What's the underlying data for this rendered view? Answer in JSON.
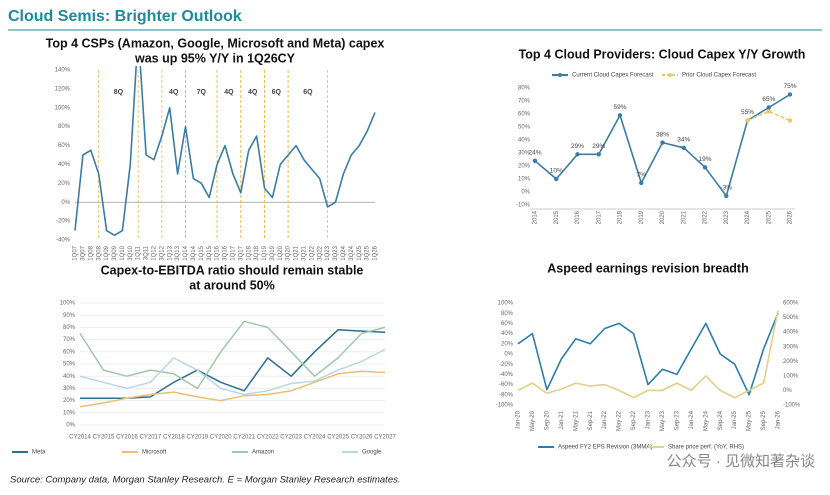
{
  "title": "Cloud Semis: Brighter Outlook",
  "source": "Source: Company data, Morgan Stanley Research. E = Morgan Stanley Research estimates.",
  "watermark": "公众号 · 见微知著杂谈",
  "chart_data": [
    {
      "type": "line",
      "title": [
        "Top 4 CSPs (Amazon, Google, Microsoft and Meta) capex",
        "was up 95% Y/Y in 1Q26CY"
      ],
      "categories": [
        "1Q07",
        "3Q07",
        "1Q08",
        "3Q08",
        "1Q09",
        "3Q09",
        "1Q10",
        "3Q10",
        "1Q11",
        "3Q11",
        "1Q12",
        "3Q12",
        "1Q13",
        "3Q13",
        "1Q14",
        "3Q14",
        "1Q15",
        "3Q15",
        "1Q16",
        "3Q16",
        "1Q17",
        "3Q17",
        "1Q18",
        "3Q18",
        "1Q19",
        "3Q19",
        "1Q20",
        "3Q20",
        "1Q21",
        "3Q21",
        "1Q22",
        "3Q22",
        "1Q23",
        "3Q23",
        "1Q24",
        "3Q24",
        "1Q25",
        "3Q25",
        "1Q26"
      ],
      "values": [
        -30,
        50,
        55,
        30,
        -30,
        -35,
        -30,
        40,
        180,
        50,
        45,
        70,
        100,
        30,
        80,
        25,
        20,
        5,
        40,
        60,
        30,
        10,
        55,
        70,
        15,
        5,
        40,
        50,
        60,
        45,
        35,
        25,
        -5,
        0,
        30,
        50,
        60,
        75,
        95
      ],
      "color": "#3a7ca5",
      "annotations": [
        "8Q",
        "4Q",
        "7Q",
        "4Q",
        "4Q",
        "6Q",
        "6Q"
      ],
      "annotation_color": "#e8b84a",
      "ylim": [
        -40,
        140
      ],
      "yticks": [
        {
          "value": -40,
          "label": "-40%"
        },
        {
          "value": -20,
          "label": "-20%"
        },
        {
          "value": 0,
          "label": "0%"
        },
        {
          "value": 20,
          "label": "20%"
        },
        {
          "value": 40,
          "label": "40%"
        },
        {
          "value": 60,
          "label": "60%"
        },
        {
          "value": 80,
          "label": "80%"
        },
        {
          "value": 100,
          "label": "100%"
        },
        {
          "value": 120,
          "label": "120%"
        },
        {
          "value": 140,
          "label": "140%"
        }
      ],
      "grid": false
    },
    {
      "type": "line",
      "title": [
        "Top 4 Cloud Providers: Cloud Capex Y/Y Growth"
      ],
      "categories": [
        "2014",
        "2015",
        "2016",
        "2017",
        "2018",
        "2019",
        "2020",
        "2021",
        "2022",
        "2023",
        "2024",
        "2025",
        "2026"
      ],
      "series": [
        {
          "name": "Current Cloud Capex Forecast",
          "color": "#3a7ca5",
          "line_style": "solid",
          "values": [
            24,
            10,
            29,
            29,
            59,
            7,
            38,
            34,
            19,
            -3,
            55,
            65,
            75
          ],
          "value_labels": [
            "24%",
            "10%",
            "29%",
            "29%",
            "59%",
            "7%",
            "38%",
            "34%",
            "19%",
            "-3%",
            "55%",
            "65%",
            "75%"
          ]
        },
        {
          "name": "Prior Cloud Capex Forecast",
          "color": "#e8c86a",
          "line_style": "dashed",
          "values": [
            null,
            null,
            null,
            null,
            null,
            null,
            null,
            null,
            null,
            null,
            55,
            62,
            55
          ]
        }
      ],
      "markers": true,
      "legend": "top",
      "ylim": [
        -10,
        80
      ],
      "yticks": [
        {
          "value": -10,
          "label": "-10%"
        },
        {
          "value": 0,
          "label": "0%"
        },
        {
          "value": 10,
          "label": "10%"
        },
        {
          "value": 20,
          "label": "20%"
        },
        {
          "value": 30,
          "label": "30%"
        },
        {
          "value": 40,
          "label": "40%"
        },
        {
          "value": 50,
          "label": "50%"
        },
        {
          "value": 60,
          "label": "60%"
        },
        {
          "value": 70,
          "label": "70%"
        },
        {
          "value": 80,
          "label": "80%"
        }
      ],
      "grid": false
    },
    {
      "type": "line",
      "title": [
        "Capex-to-EBITDA ratio should remain stable",
        "at around 50%"
      ],
      "categories": [
        "CY2014",
        "CY2015",
        "CY2016",
        "CY2017",
        "CY2018",
        "CY2019",
        "CY2020",
        "CY2021",
        "CY2022",
        "CY2023",
        "CY2024",
        "CY2025",
        "CY2026",
        "CY2027"
      ],
      "series": [
        {
          "name": "Meta",
          "color": "#2e6e8e",
          "line_style": "solid",
          "values": [
            22,
            22,
            22,
            23,
            35,
            45,
            35,
            28,
            55,
            40,
            60,
            78,
            77,
            76
          ]
        },
        {
          "name": "Microsoft",
          "color": "#e8c070",
          "line_style": "solid",
          "values": [
            15,
            18,
            22,
            25,
            27,
            23,
            20,
            24,
            25,
            28,
            35,
            42,
            44,
            43
          ]
        },
        {
          "name": "Amazon",
          "color": "#9dc8a8",
          "line_style": "solid",
          "values": [
            75,
            45,
            40,
            45,
            42,
            30,
            60,
            85,
            80,
            60,
            40,
            55,
            75,
            80
          ]
        },
        {
          "name": "Google",
          "color": "#b8d8e0",
          "line_style": "solid",
          "values": [
            40,
            35,
            30,
            35,
            55,
            45,
            30,
            25,
            28,
            34,
            36,
            45,
            52,
            62
          ]
        }
      ],
      "legend": "bottom",
      "ylim": [
        0,
        100
      ],
      "yticks": [
        {
          "value": 0,
          "label": "0%"
        },
        {
          "value": 10,
          "label": "10%"
        },
        {
          "value": 20,
          "label": "20%"
        },
        {
          "value": 30,
          "label": "30%"
        },
        {
          "value": 40,
          "label": "40%"
        },
        {
          "value": 50,
          "label": "50%"
        },
        {
          "value": 60,
          "label": "60%"
        },
        {
          "value": 70,
          "label": "70%"
        },
        {
          "value": 80,
          "label": "80%"
        },
        {
          "value": 90,
          "label": "90%"
        },
        {
          "value": 100,
          "label": "100%"
        }
      ],
      "grid": true
    },
    {
      "type": "line",
      "title": [
        "Aspeed earnings revision breadth"
      ],
      "categories": [
        "Jan-20",
        "May-20",
        "Sep-20",
        "Jan-21",
        "May-21",
        "Sep-21",
        "Jan-22",
        "May-22",
        "Sep-22",
        "Jan-23",
        "May-23",
        "Sep-23",
        "Jan-24",
        "May-24",
        "Sep-24",
        "Jan-25",
        "May-25",
        "Sep-25",
        "Jan-26"
      ],
      "series": [
        {
          "name": "Aspeed FY2 EPS Revision (3MMA)",
          "color": "#2a7fa8",
          "line_style": "solid",
          "values": [
            20,
            40,
            -70,
            -10,
            30,
            20,
            50,
            60,
            40,
            -60,
            -30,
            -40,
            10,
            60,
            0,
            -20,
            -80,
            10,
            80
          ]
        },
        {
          "name": "Share price perf. (YoY, RHS)",
          "color": "#e2cf8a",
          "line_style": "solid",
          "axis": "y2",
          "values": [
            0,
            50,
            -20,
            10,
            50,
            30,
            40,
            0,
            -50,
            0,
            0,
            50,
            0,
            100,
            0,
            -50,
            0,
            50,
            550
          ]
        }
      ],
      "legend": "bottom",
      "ylim": [
        -100,
        100
      ],
      "yticks": [
        {
          "value": -100,
          "label": "-100%"
        },
        {
          "value": -80,
          "label": "-80%"
        },
        {
          "value": -60,
          "label": "-60%"
        },
        {
          "value": -40,
          "label": "-40%"
        },
        {
          "value": -20,
          "label": "-20%"
        },
        {
          "value": 0,
          "label": "0%"
        },
        {
          "value": 20,
          "label": "20%"
        },
        {
          "value": 40,
          "label": "40%"
        },
        {
          "value": 60,
          "label": "60%"
        },
        {
          "value": 80,
          "label": "80%"
        },
        {
          "value": 100,
          "label": "100%"
        }
      ],
      "y2lim": [
        -100,
        600
      ],
      "y2ticks": [
        {
          "value": -100,
          "label": "-100%"
        },
        {
          "value": 0,
          "label": "0%"
        },
        {
          "value": 100,
          "label": "100%"
        },
        {
          "value": 200,
          "label": "200%"
        },
        {
          "value": 300,
          "label": "300%"
        },
        {
          "value": 400,
          "label": "400%"
        },
        {
          "value": 500,
          "label": "500%"
        },
        {
          "value": 600,
          "label": "600%"
        }
      ],
      "grid": false
    }
  ]
}
